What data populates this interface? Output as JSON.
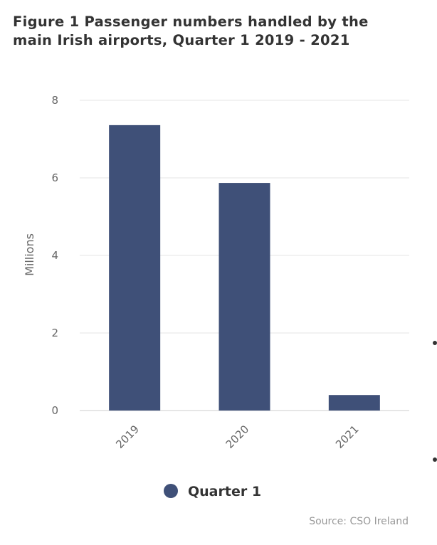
{
  "chart_data": {
    "type": "bar",
    "title": "Figure 1 Passenger numbers handled by the main Irish airports, Quarter 1 2019 - 2021",
    "categories": [
      "2019",
      "2020",
      "2021"
    ],
    "series": [
      {
        "name": "Quarter 1",
        "values": [
          7.36,
          5.87,
          0.4
        ],
        "color": "#3f5078"
      }
    ],
    "ylabel": "Millions",
    "ylim": [
      0,
      8
    ],
    "yticks": [
      "0",
      "2",
      "4",
      "6",
      "8"
    ],
    "grid": true,
    "legend": "bottom-center",
    "source": "Source: CSO Ireland"
  }
}
